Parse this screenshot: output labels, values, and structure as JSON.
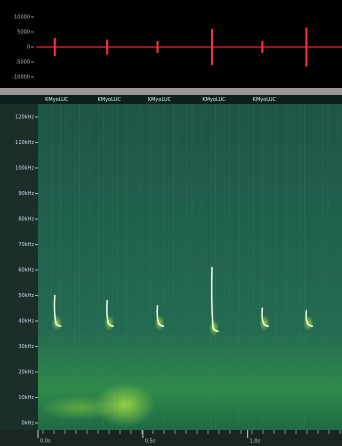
{
  "waveform": {
    "ylim": [
      15000,
      -15000
    ],
    "yticks": [
      10000,
      5000,
      0,
      -5000,
      -10000
    ],
    "peaks": [
      3000,
      2500,
      2000,
      6000,
      2000,
      6500
    ]
  },
  "spectrogram": {
    "ylim": [
      0,
      120
    ],
    "yticks": [
      {
        "value": 120,
        "label": "120kHz"
      },
      {
        "value": 110,
        "label": "110kHz"
      },
      {
        "value": 100,
        "label": "100kHz"
      },
      {
        "value": 90,
        "label": "90kHz"
      },
      {
        "value": 80,
        "label": "80kHz"
      },
      {
        "value": 70,
        "label": "70kHz"
      },
      {
        "value": 60,
        "label": "60kHz"
      },
      {
        "value": 50,
        "label": "50kHz"
      },
      {
        "value": 40,
        "label": "40kHz"
      },
      {
        "value": 30,
        "label": "30kHz"
      },
      {
        "value": 20,
        "label": "20kHz"
      },
      {
        "value": 10,
        "label": "10kHz"
      },
      {
        "value": 0,
        "label": "0kHz"
      }
    ],
    "xlim": [
      0,
      1.45
    ],
    "xticks": [
      {
        "value": 0,
        "label": "0.0s"
      },
      {
        "value": 0.5,
        "label": "0.5s"
      },
      {
        "value": 1,
        "label": "1.0s"
      }
    ],
    "calls": [
      {
        "label": "KMyoLUC",
        "time": 0.08,
        "f_high": 50,
        "f_low": 38
      },
      {
        "label": "KMyoLUC",
        "time": 0.33,
        "f_high": 48,
        "f_low": 38
      },
      {
        "label": "KMyoLUC",
        "time": 0.57,
        "f_high": 46,
        "f_low": 38
      },
      {
        "label": "KMyoLUC",
        "time": 0.83,
        "f_high": 61,
        "f_low": 36
      },
      {
        "label": "KMyoLUC",
        "time": 1.07,
        "f_high": 45,
        "f_low": 38
      },
      {
        "time": 1.28,
        "f_high": 44,
        "f_low": 38
      }
    ]
  }
}
